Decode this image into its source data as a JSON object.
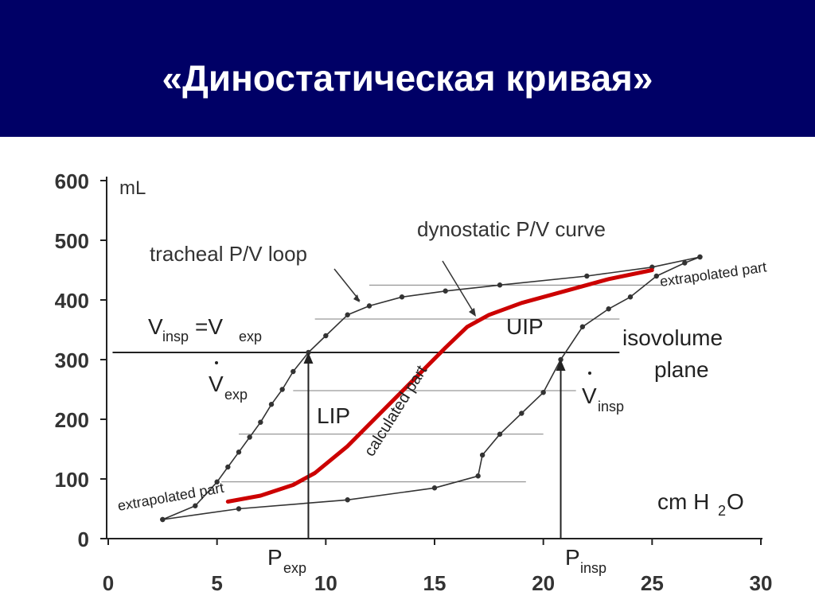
{
  "slide": {
    "title": "«Диностатическая кривая»",
    "header_color": "#000066",
    "title_color": "#ffffff"
  },
  "chart_data": {
    "type": "line",
    "ylabel": "mL",
    "xlabel": "cm H2O",
    "xlim": [
      0,
      30
    ],
    "ylim": [
      0,
      600
    ],
    "xticks": [
      0,
      5,
      10,
      15,
      20,
      25,
      30
    ],
    "yticks": [
      0,
      100,
      200,
      300,
      400,
      500,
      600
    ],
    "series": [
      {
        "name": "tracheal P/V loop (expiratory)",
        "color": "#333333",
        "x": [
          2.5,
          4,
          5,
          5.5,
          6,
          6.5,
          7,
          7.5,
          8,
          8.5,
          9.2,
          10,
          11,
          12,
          13.5,
          15.5,
          18,
          22,
          25,
          27.2
        ],
        "y": [
          32,
          55,
          95,
          120,
          145,
          170,
          195,
          225,
          250,
          280,
          312,
          340,
          375,
          390,
          405,
          415,
          425,
          440,
          455,
          472
        ]
      },
      {
        "name": "tracheal P/V loop (inspiratory)",
        "color": "#333333",
        "x": [
          2.5,
          6,
          11,
          15,
          17,
          17.2,
          18,
          19,
          20,
          20.8,
          21.8,
          23,
          24,
          25.2,
          26.5,
          27.2
        ],
        "y": [
          32,
          50,
          65,
          85,
          105,
          140,
          175,
          210,
          245,
          300,
          355,
          385,
          405,
          440,
          462,
          472
        ]
      },
      {
        "name": "dynostatic P/V curve",
        "color": "#cc0000",
        "x": [
          5.5,
          7,
          8.5,
          9.5,
          11,
          12.5,
          14,
          15.5,
          16.5,
          17.5,
          19,
          21,
          23,
          25
        ],
        "y": [
          62,
          72,
          90,
          110,
          155,
          210,
          265,
          320,
          355,
          375,
          395,
          415,
          435,
          450
        ]
      }
    ],
    "horizontal_lines": [
      {
        "y": 312,
        "x": [
          0.2,
          23.5
        ],
        "style": "solid"
      },
      {
        "y": 425,
        "x": [
          12,
          25.5
        ],
        "style": "thin"
      },
      {
        "y": 368,
        "x": [
          9.5,
          23.5
        ],
        "style": "thin"
      },
      {
        "y": 248,
        "x": [
          8.5,
          21.5
        ],
        "style": "thin"
      },
      {
        "y": 175,
        "x": [
          6,
          20
        ],
        "style": "thin"
      },
      {
        "y": 95,
        "x": [
          5.2,
          19.2
        ],
        "style": "thin"
      }
    ],
    "arrows": [
      {
        "x": 9.2,
        "y_from": 0,
        "y_to": 312
      },
      {
        "x": 20.8,
        "y_from": 0,
        "y_to": 300
      }
    ],
    "annotations": {
      "tracheal": "tracheal P/V loop",
      "dynostatic": "dynostatic P/V curve",
      "vinsp_eq_vexp": "Vinsp=Vexp",
      "vexp": "Vexp",
      "vinsp": "Vinsp",
      "lip": "LIP",
      "uip": "UIP",
      "isovolume_1": "isovolume",
      "isovolume_2": "plane",
      "calculated": "calculated part",
      "extrapolated_left": "extrapolated part",
      "extrapolated_right": "extrapolated part",
      "pexp": "Pexp",
      "pinsp": "Pinsp",
      "cmh2o": "cm H2O",
      "ml": "mL"
    }
  }
}
